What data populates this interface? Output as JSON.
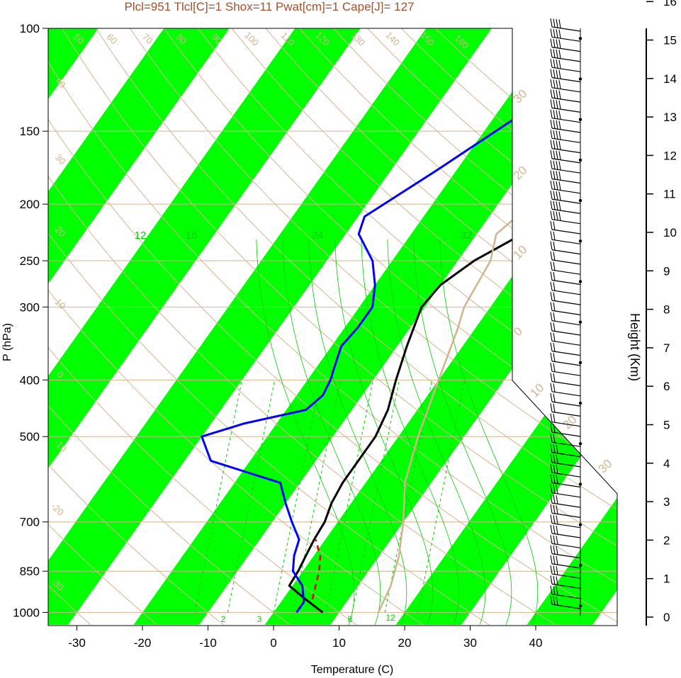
{
  "title": "Plcl=951 Tlcl[C]=1 Shox=11 Pwat[cm]=1 Cape[J]= 127",
  "colors": {
    "temperature": "#000000",
    "dewpoint": "#0000ff",
    "parcel": "#d2b48c",
    "lcl_path": "#dd0000",
    "bands": "#00ff00",
    "isobar": "#d2b48c",
    "dry_adiabat": "#d2b48c",
    "moist_adiabat": "#00cc00",
    "title": "#a0522d"
  },
  "chart_data": {
    "type": "line",
    "xlabel": "Temperature (C)",
    "ylabel": "P (hPa)",
    "y2label": "Height (Km)",
    "x_ticks": [
      "-30",
      "-20",
      "-10",
      "0",
      "10",
      "20",
      "30",
      "40"
    ],
    "p_ticks": [
      "100",
      "150",
      "200",
      "250",
      "300",
      "400",
      "500",
      "700",
      "850",
      "1000"
    ],
    "height_ticks": [
      "0",
      "1",
      "2",
      "3",
      "4",
      "5",
      "6",
      "7",
      "8",
      "9",
      "10",
      "11",
      "12",
      "13",
      "14",
      "15",
      "16"
    ],
    "dry_adiabat_labels": [
      "50",
      "60",
      "70",
      "80",
      "90",
      "100",
      "110",
      "120",
      "130",
      "140",
      "150",
      "160",
      "40",
      "30",
      "20",
      "10",
      "0",
      "-10",
      "-20",
      "-30"
    ],
    "isotherm_labels": [
      "30",
      "20",
      "10",
      "0",
      "10",
      "20",
      "30"
    ],
    "moist_adiabat_labels": [
      "12",
      "16",
      "24",
      "32"
    ],
    "mixing_ratio_labels": [
      "2",
      "3",
      "8",
      "12"
    ],
    "series": [
      {
        "role": "temperature",
        "points": [
          [
            7.5,
            1000
          ],
          [
            3.5,
            950
          ],
          [
            -0.5,
            900
          ],
          [
            -0.7,
            850
          ],
          [
            -1.2,
            800
          ],
          [
            -1.7,
            750
          ],
          [
            -2.0,
            700
          ],
          [
            -3.0,
            650
          ],
          [
            -3.5,
            600
          ],
          [
            -3.5,
            550
          ],
          [
            -3.5,
            500
          ],
          [
            -4.5,
            450
          ],
          [
            -6.5,
            400
          ],
          [
            -8.5,
            350
          ],
          [
            -10.5,
            300
          ],
          [
            -10,
            275
          ],
          [
            -7.5,
            250
          ],
          [
            -3,
            225
          ],
          [
            2,
            200
          ],
          [
            9,
            175
          ],
          [
            14,
            150
          ],
          [
            17,
            135
          ],
          [
            19,
            120
          ],
          [
            21,
            100
          ]
        ]
      },
      {
        "role": "dewpoint",
        "points": [
          [
            3.5,
            1000
          ],
          [
            3.5,
            960
          ],
          [
            1.5,
            900
          ],
          [
            -1.5,
            850
          ],
          [
            -3,
            800
          ],
          [
            -4,
            750
          ],
          [
            -7,
            700
          ],
          [
            -10,
            650
          ],
          [
            -13,
            600
          ],
          [
            -26,
            550
          ],
          [
            -30,
            500
          ],
          [
            -25,
            475
          ],
          [
            -17,
            450
          ],
          [
            -16,
            425
          ],
          [
            -16.5,
            400
          ],
          [
            -17.5,
            375
          ],
          [
            -18.5,
            350
          ],
          [
            -18,
            325
          ],
          [
            -18,
            300
          ],
          [
            -20,
            275
          ],
          [
            -23,
            250
          ],
          [
            -28,
            225
          ],
          [
            -29,
            210
          ],
          [
            -23,
            175
          ],
          [
            -15,
            135
          ],
          [
            -6,
            100
          ]
        ]
      },
      {
        "role": "parcel",
        "points": [
          [
            16,
            1000
          ],
          [
            15,
            900
          ],
          [
            13,
            800
          ],
          [
            10,
            700
          ],
          [
            6,
            600
          ],
          [
            3,
            500
          ],
          [
            0,
            400
          ],
          [
            -2.5,
            330
          ],
          [
            -4,
            300
          ],
          [
            -5,
            250
          ],
          [
            -7,
            225
          ],
          [
            -3,
            180
          ],
          [
            5,
            125
          ],
          [
            15,
            100
          ]
        ]
      },
      {
        "role": "lcl_path",
        "points": [
          [
            4.5,
            950
          ],
          [
            2.5,
            850
          ],
          [
            1,
            800
          ],
          [
            -1.5,
            750
          ]
        ]
      }
    ],
    "wind_barb_heights_km": [
      "0",
      "1",
      "2",
      "3",
      "4",
      "5",
      "6",
      "7",
      "8",
      "9",
      "10",
      "11",
      "12",
      "13",
      "14",
      "15",
      "16"
    ]
  }
}
